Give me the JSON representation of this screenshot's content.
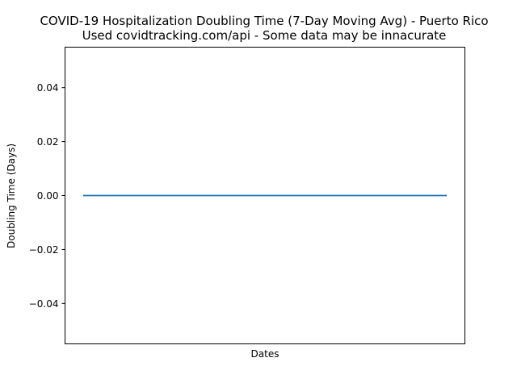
{
  "chart_data": {
    "type": "line",
    "title": "COVID-19 Hospitalization Doubling Time (7-Day Moving Avg) - Puerto Rico",
    "subtitle": "Used covidtracking.com/api - Some data may be innacurate",
    "xlabel": "Dates",
    "ylabel": "Doubling Time (Days)",
    "ylim": [
      -0.055,
      0.055
    ],
    "yticks": [
      -0.04,
      -0.02,
      0.0,
      0.02,
      0.04
    ],
    "ytick_labels": [
      "−0.04",
      "−0.02",
      "0.00",
      "0.02",
      "0.04"
    ],
    "xticks": [],
    "grid": false,
    "legend": null,
    "series": [
      {
        "x": [
          0,
          1
        ],
        "y": [
          0,
          0
        ],
        "color": "#1f77b4"
      }
    ]
  }
}
